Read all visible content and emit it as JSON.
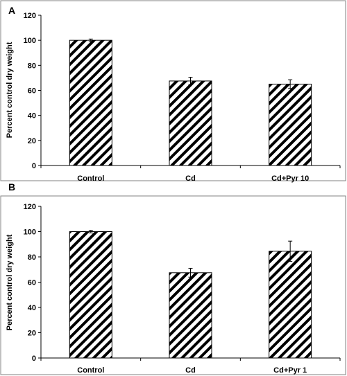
{
  "chart_data": [
    {
      "type": "bar",
      "panel_label": "A",
      "title": "",
      "xlabel": "",
      "ylabel": "Percent control dry weight",
      "ylim": [
        0,
        120
      ],
      "yticks": [
        0,
        20,
        40,
        60,
        80,
        100,
        120
      ],
      "categories": [
        "Control",
        "Cd",
        "Cd+Pyr 10"
      ],
      "values": [
        100,
        67.5,
        65
      ],
      "errors": [
        1,
        3,
        3.5
      ],
      "pattern": "diagonal-hatch",
      "grid": false,
      "legend": "none"
    },
    {
      "type": "bar",
      "panel_label": "B",
      "title": "",
      "xlabel": "",
      "ylabel": "Percent control dry weight",
      "ylim": [
        0,
        120
      ],
      "yticks": [
        0,
        20,
        40,
        60,
        80,
        100,
        120
      ],
      "categories": [
        "Control",
        "Cd",
        "Cd+Pyr 1"
      ],
      "values": [
        100,
        67.5,
        84.5
      ],
      "errors": [
        1,
        3.5,
        8
      ],
      "pattern": "diagonal-hatch",
      "grid": false,
      "legend": "none"
    }
  ],
  "colors": {
    "bar_fill": "#ffffff",
    "hatch": "#000000",
    "axis": "#000000",
    "frame": "#808080"
  }
}
